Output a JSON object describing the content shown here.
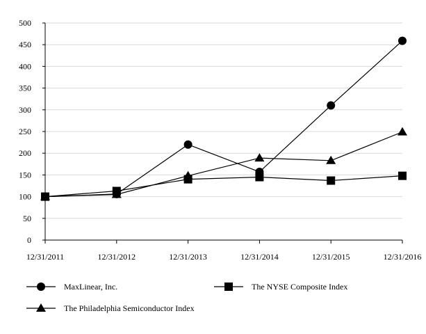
{
  "chart_data": {
    "type": "line",
    "x": [
      "12/31/2011",
      "12/31/2012",
      "12/31/2013",
      "12/31/2014",
      "12/31/2015",
      "12/31/2016"
    ],
    "series": [
      {
        "name": "MaxLinear, Inc.",
        "marker": "circle",
        "values": [
          100,
          106,
          220,
          157,
          310,
          459
        ]
      },
      {
        "name": "The NYSE Composite Index",
        "marker": "square",
        "values": [
          100,
          113,
          140,
          145,
          137,
          148
        ]
      },
      {
        "name": "The Philadelphia Semiconductor Index",
        "marker": "triangle",
        "values": [
          100,
          105,
          148,
          189,
          183,
          249
        ]
      }
    ],
    "yticks": [
      "0",
      "50",
      "100",
      "150",
      "200",
      "250",
      "300",
      "350",
      "400",
      "450",
      "500"
    ],
    "ylim": [
      0,
      500
    ],
    "grid": "horizontal",
    "legend": "bottom",
    "colors": {
      "line": "#000000",
      "grid": "#d9d9d9",
      "axis": "#000000"
    }
  }
}
